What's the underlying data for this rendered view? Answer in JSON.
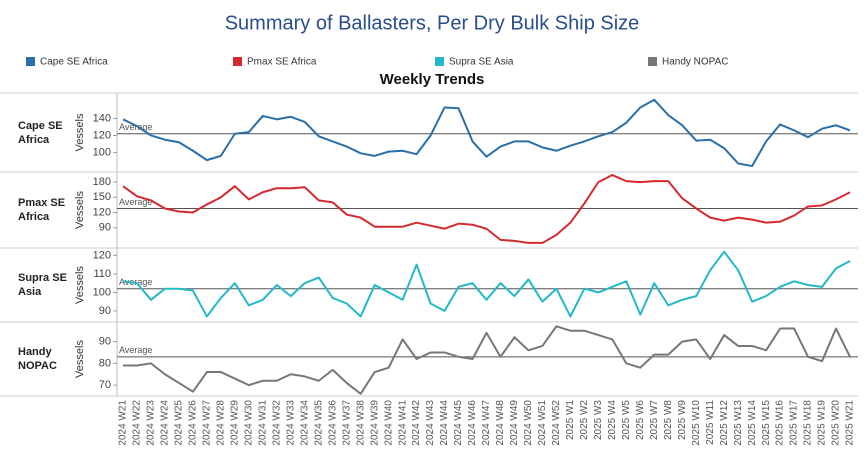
{
  "title": "Summary of Ballasters, Per Dry Bulk Ship Size",
  "subtitle": "Weekly Trends",
  "chart_data": [
    {
      "type": "line",
      "title": "Cape SE Africa",
      "ylabel": "Vessels",
      "categories": [
        "2024 W21",
        "2024 W22",
        "2024 W23",
        "2024 W24",
        "2024 W25",
        "2024 W26",
        "2024 W27",
        "2024 W28",
        "2024 W29",
        "2024 W30",
        "2024 W31",
        "2024 W32",
        "2024 W33",
        "2024 W34",
        "2024 W35",
        "2024 W36",
        "2024 W37",
        "2024 W38",
        "2024 W39",
        "2024 W40",
        "2024 W41",
        "2024 W42",
        "2024 W43",
        "2024 W44",
        "2024 W45",
        "2024 W46",
        "2024 W47",
        "2024 W48",
        "2024 W49",
        "2024 W50",
        "2024 W51",
        "2024 W52",
        "2025 W1",
        "2025 W2",
        "2025 W3",
        "2025 W4",
        "2025 W5",
        "2025 W6",
        "2025 W7",
        "2025 W8",
        "2025 W9",
        "2025 W10",
        "2025 W11",
        "2025 W12",
        "2025 W13",
        "2025 W14",
        "2025 W15",
        "2025 W16",
        "2025 W17",
        "2025 W18",
        "2025 W19",
        "2025 W20",
        "2025 W21"
      ],
      "series": [
        {
          "name": "Cape SE Africa",
          "color": "#2a6fa8",
          "values": [
            139,
            131,
            120,
            115,
            112,
            102,
            91,
            96,
            122,
            124,
            143,
            139,
            142,
            136,
            119,
            113,
            107,
            99,
            96,
            101,
            102,
            98,
            120,
            153,
            152,
            113,
            95,
            107,
            113,
            113,
            106,
            102,
            108,
            113,
            119,
            124,
            135,
            153,
            162,
            144,
            132,
            114,
            115,
            105,
            87,
            84,
            113,
            133,
            126,
            118,
            128,
            132,
            126
          ]
        }
      ],
      "ylim": [
        77,
        170
      ],
      "yticks": [
        100,
        120,
        140
      ],
      "grid": false,
      "average": {
        "label": "Average",
        "value": 122
      }
    },
    {
      "type": "line",
      "title": "Pmax SE Africa",
      "ylabel": "Vessels",
      "categories": [
        "2024 W21",
        "2024 W22",
        "2024 W23",
        "2024 W24",
        "2024 W25",
        "2024 W26",
        "2024 W27",
        "2024 W28",
        "2024 W29",
        "2024 W30",
        "2024 W31",
        "2024 W32",
        "2024 W33",
        "2024 W34",
        "2024 W35",
        "2024 W36",
        "2024 W37",
        "2024 W38",
        "2024 W39",
        "2024 W40",
        "2024 W41",
        "2024 W42",
        "2024 W43",
        "2024 W44",
        "2024 W45",
        "2024 W46",
        "2024 W47",
        "2024 W48",
        "2024 W49",
        "2024 W50",
        "2024 W51",
        "2024 W52",
        "2025 W1",
        "2025 W2",
        "2025 W3",
        "2025 W4",
        "2025 W5",
        "2025 W6",
        "2025 W7",
        "2025 W8",
        "2025 W9",
        "2025 W10",
        "2025 W11",
        "2025 W12",
        "2025 W13",
        "2025 W14",
        "2025 W15",
        "2025 W16",
        "2025 W17",
        "2025 W18",
        "2025 W19",
        "2025 W20",
        "2025 W21"
      ],
      "series": [
        {
          "name": "Pmax SE Africa",
          "color": "#d42a2f",
          "values": [
            172,
            152,
            144,
            128,
            122,
            120,
            136,
            150,
            172,
            146,
            160,
            168,
            168,
            170,
            144,
            140,
            116,
            110,
            92,
            92,
            92,
            100,
            94,
            88,
            98,
            96,
            88,
            66,
            64,
            60,
            60,
            76,
            100,
            138,
            180,
            194,
            182,
            180,
            182,
            182,
            148,
            128,
            110,
            104,
            110,
            106,
            100,
            102,
            114,
            132,
            134,
            146,
            160
          ]
        }
      ],
      "ylim": [
        50,
        200
      ],
      "yticks": [
        90,
        120,
        150,
        180
      ],
      "grid": false,
      "average": {
        "label": "Average",
        "value": 128
      }
    },
    {
      "type": "line",
      "title": "Supra SE Asia",
      "ylabel": "Vessels",
      "categories": [
        "2024 W21",
        "2024 W22",
        "2024 W23",
        "2024 W24",
        "2024 W25",
        "2024 W26",
        "2024 W27",
        "2024 W28",
        "2024 W29",
        "2024 W30",
        "2024 W31",
        "2024 W32",
        "2024 W33",
        "2024 W34",
        "2024 W35",
        "2024 W36",
        "2024 W37",
        "2024 W38",
        "2024 W39",
        "2024 W40",
        "2024 W41",
        "2024 W42",
        "2024 W43",
        "2024 W44",
        "2024 W45",
        "2024 W46",
        "2024 W47",
        "2024 W48",
        "2024 W49",
        "2024 W50",
        "2024 W51",
        "2024 W52",
        "2025 W1",
        "2025 W2",
        "2025 W3",
        "2025 W4",
        "2025 W5",
        "2025 W6",
        "2025 W7",
        "2025 W8",
        "2025 W9",
        "2025 W10",
        "2025 W11",
        "2025 W12",
        "2025 W13",
        "2025 W14",
        "2025 W15",
        "2025 W16",
        "2025 W17",
        "2025 W18",
        "2025 W19",
        "2025 W20",
        "2025 W21"
      ],
      "series": [
        {
          "name": "Supra SE Asia",
          "color": "#22b8c8",
          "values": [
            106,
            105,
            96,
            102,
            102,
            101,
            87,
            97,
            105,
            93,
            96,
            104,
            98,
            105,
            108,
            97,
            94,
            87,
            104,
            100,
            96,
            115,
            94,
            90,
            103,
            105,
            96,
            105,
            98,
            107,
            95,
            102,
            87,
            102,
            100,
            103,
            106,
            88,
            105,
            93,
            96,
            98,
            112,
            122,
            112,
            95,
            98,
            103,
            106,
            104,
            103,
            113,
            117
          ]
        }
      ],
      "ylim": [
        84,
        124
      ],
      "yticks": [
        90,
        100,
        110,
        120
      ],
      "grid": false,
      "average": {
        "label": "Average",
        "value": 102
      }
    },
    {
      "type": "line",
      "title": "Handy NOPAC",
      "ylabel": "Vessels",
      "categories": [
        "2024 W21",
        "2024 W22",
        "2024 W23",
        "2024 W24",
        "2024 W25",
        "2024 W26",
        "2024 W27",
        "2024 W28",
        "2024 W29",
        "2024 W30",
        "2024 W31",
        "2024 W32",
        "2024 W33",
        "2024 W34",
        "2024 W35",
        "2024 W36",
        "2024 W37",
        "2024 W38",
        "2024 W39",
        "2024 W40",
        "2024 W41",
        "2024 W42",
        "2024 W43",
        "2024 W44",
        "2024 W45",
        "2024 W46",
        "2024 W47",
        "2024 W48",
        "2024 W49",
        "2024 W50",
        "2024 W51",
        "2024 W52",
        "2025 W1",
        "2025 W2",
        "2025 W3",
        "2025 W4",
        "2025 W5",
        "2025 W6",
        "2025 W7",
        "2025 W8",
        "2025 W9",
        "2025 W10",
        "2025 W11",
        "2025 W12",
        "2025 W13",
        "2025 W14",
        "2025 W15",
        "2025 W16",
        "2025 W17",
        "2025 W18",
        "2025 W19",
        "2025 W20",
        "2025 W21"
      ],
      "series": [
        {
          "name": "Handy NOPAC",
          "color": "#777777",
          "values": [
            79,
            79,
            80,
            75,
            71,
            67,
            76,
            76,
            73,
            70,
            72,
            72,
            75,
            74,
            72,
            77,
            71,
            66,
            76,
            78,
            91,
            82,
            85,
            85,
            83,
            82,
            94,
            83,
            92,
            86,
            88,
            97,
            95,
            95,
            93,
            91,
            80,
            78,
            84,
            84,
            90,
            91,
            82,
            93,
            88,
            88,
            86,
            96,
            96,
            83,
            81,
            96,
            83
          ]
        }
      ],
      "ylim": [
        65,
        99
      ],
      "yticks": [
        70,
        80,
        90
      ],
      "grid": false,
      "average": {
        "label": "Average",
        "value": 83
      }
    }
  ]
}
